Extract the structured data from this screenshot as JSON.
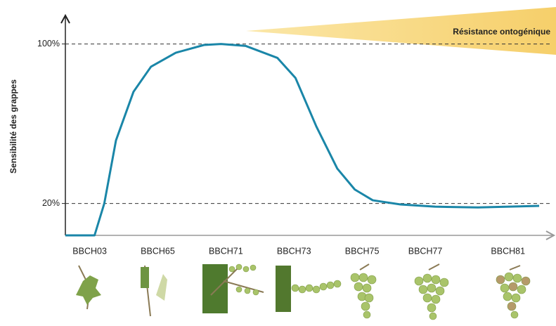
{
  "chart_data": {
    "type": "line",
    "annotation": "Résistance ontogénique",
    "y_label": "Sensibilité des grappes",
    "xlim": [
      0,
      100
    ],
    "xticks": [
      {
        "value": 5,
        "label": "BBCH03"
      },
      {
        "value": 19,
        "label": "BBCH65"
      },
      {
        "value": 33,
        "label": "BBCH71"
      },
      {
        "value": 47,
        "label": "BBCH73"
      },
      {
        "value": 61,
        "label": "BBCH75"
      },
      {
        "value": 74,
        "label": "BBCH77"
      },
      {
        "value": 91,
        "label": "BBCH81"
      }
    ],
    "ylim": [
      4,
      113
    ],
    "yticks": [
      {
        "value": 20,
        "label": "20%"
      },
      {
        "value": 100,
        "label": "100%"
      }
    ],
    "grid": true,
    "series": [
      {
        "color": "#1a86a8",
        "x": [
          0,
          6,
          8,
          10.4,
          14,
          17.6,
          22.7,
          28.5,
          32,
          37.1,
          43.6,
          47.3,
          51.6,
          55.9,
          59.5,
          63.2,
          68.9,
          76,
          84.8,
          97.4
        ],
        "values": [
          4,
          4,
          20,
          51.6,
          76,
          88.6,
          95.6,
          99.5,
          100,
          99,
          93,
          83,
          58.6,
          37.5,
          27,
          21.6,
          19.5,
          18.4,
          18,
          18.8
        ]
      }
    ]
  }
}
